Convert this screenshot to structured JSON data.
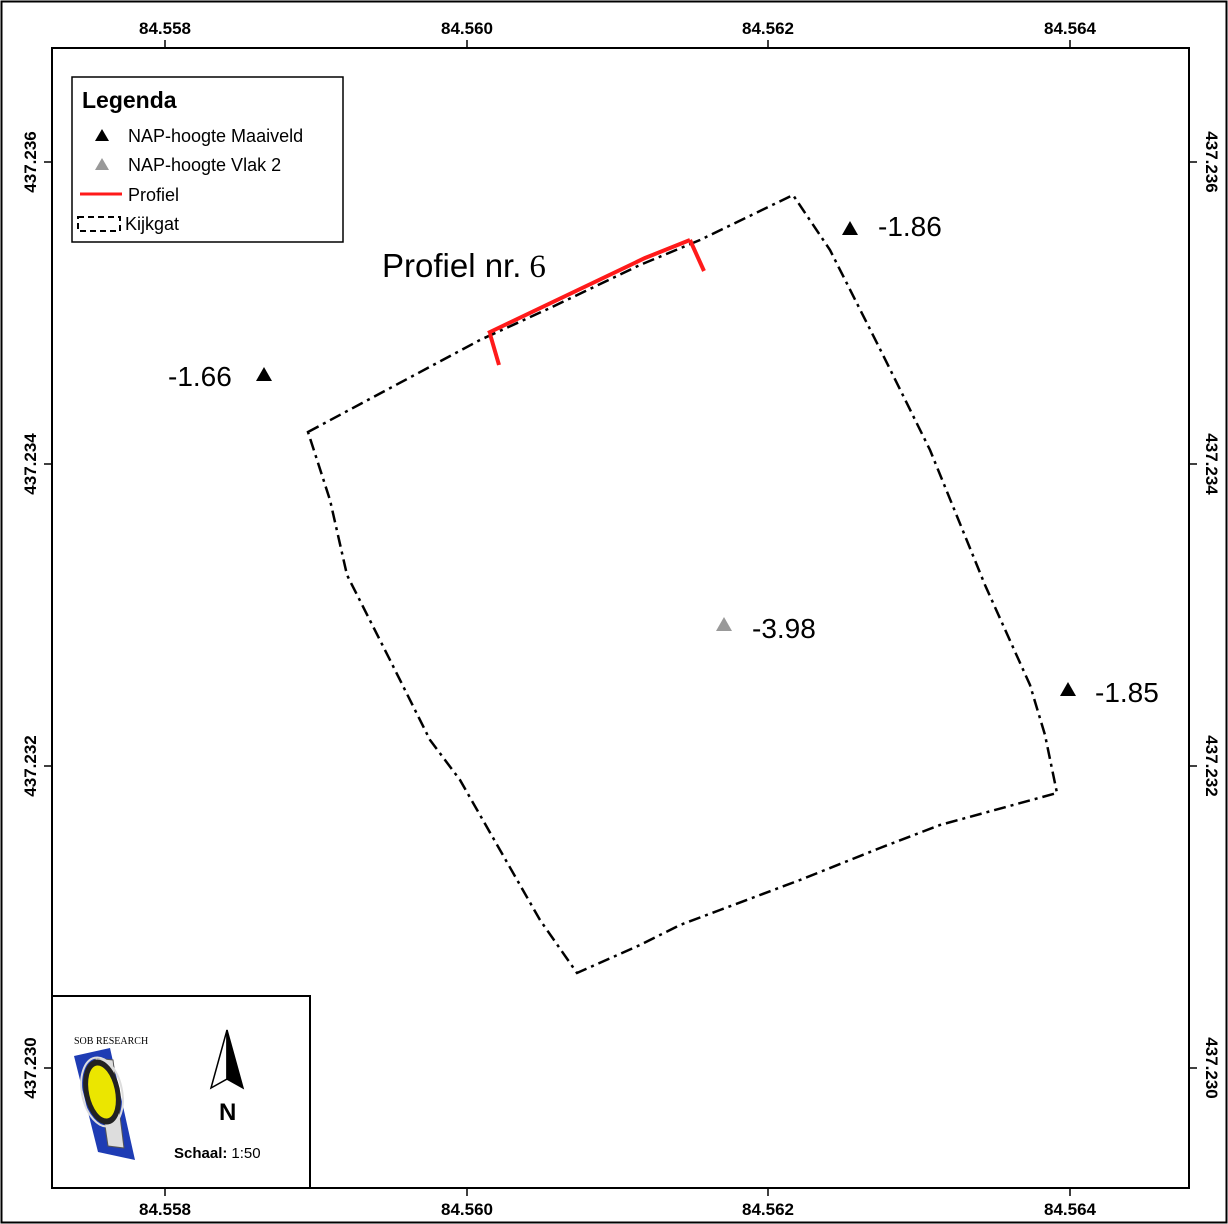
{
  "axes": {
    "x_ticks": [
      "84.558",
      "84.560",
      "84.562",
      "84.564"
    ],
    "y_ticks": [
      "437.236",
      "437.234",
      "437.232",
      "437.230"
    ]
  },
  "legend": {
    "title": "Legenda",
    "items": [
      {
        "label": "NAP-hoogte Maaiveld",
        "symbol": "black-triangle-icon",
        "color": "#000000"
      },
      {
        "label": "NAP-hoogte Vlak 2",
        "symbol": "gray-triangle-icon",
        "color": "#999999"
      },
      {
        "label": "Profiel",
        "symbol": "red-line-icon",
        "color": "#ff1a1a"
      },
      {
        "label": "Kijkgat",
        "symbol": "dashed-box-icon",
        "color": "#000000"
      }
    ]
  },
  "profile": {
    "label": "Profiel nr.",
    "number": "6"
  },
  "points": [
    {
      "label": "-1.86",
      "type": "Maaiveld",
      "x": 84.56253,
      "y": 437.23555
    },
    {
      "label": "-1.66",
      "type": "Maaiveld",
      "x": 84.55866,
      "y": 437.23461
    },
    {
      "label": "-3.98",
      "type": "Vlak 2",
      "x": 84.56171,
      "y": 437.23293
    },
    {
      "label": "-1.85",
      "type": "Maaiveld",
      "x": 84.56398,
      "y": 437.23251
    }
  ],
  "inset": {
    "org": "SOB RESEARCH",
    "north": "N",
    "scale_label": "Schaal:",
    "scale_value": "1:50"
  }
}
